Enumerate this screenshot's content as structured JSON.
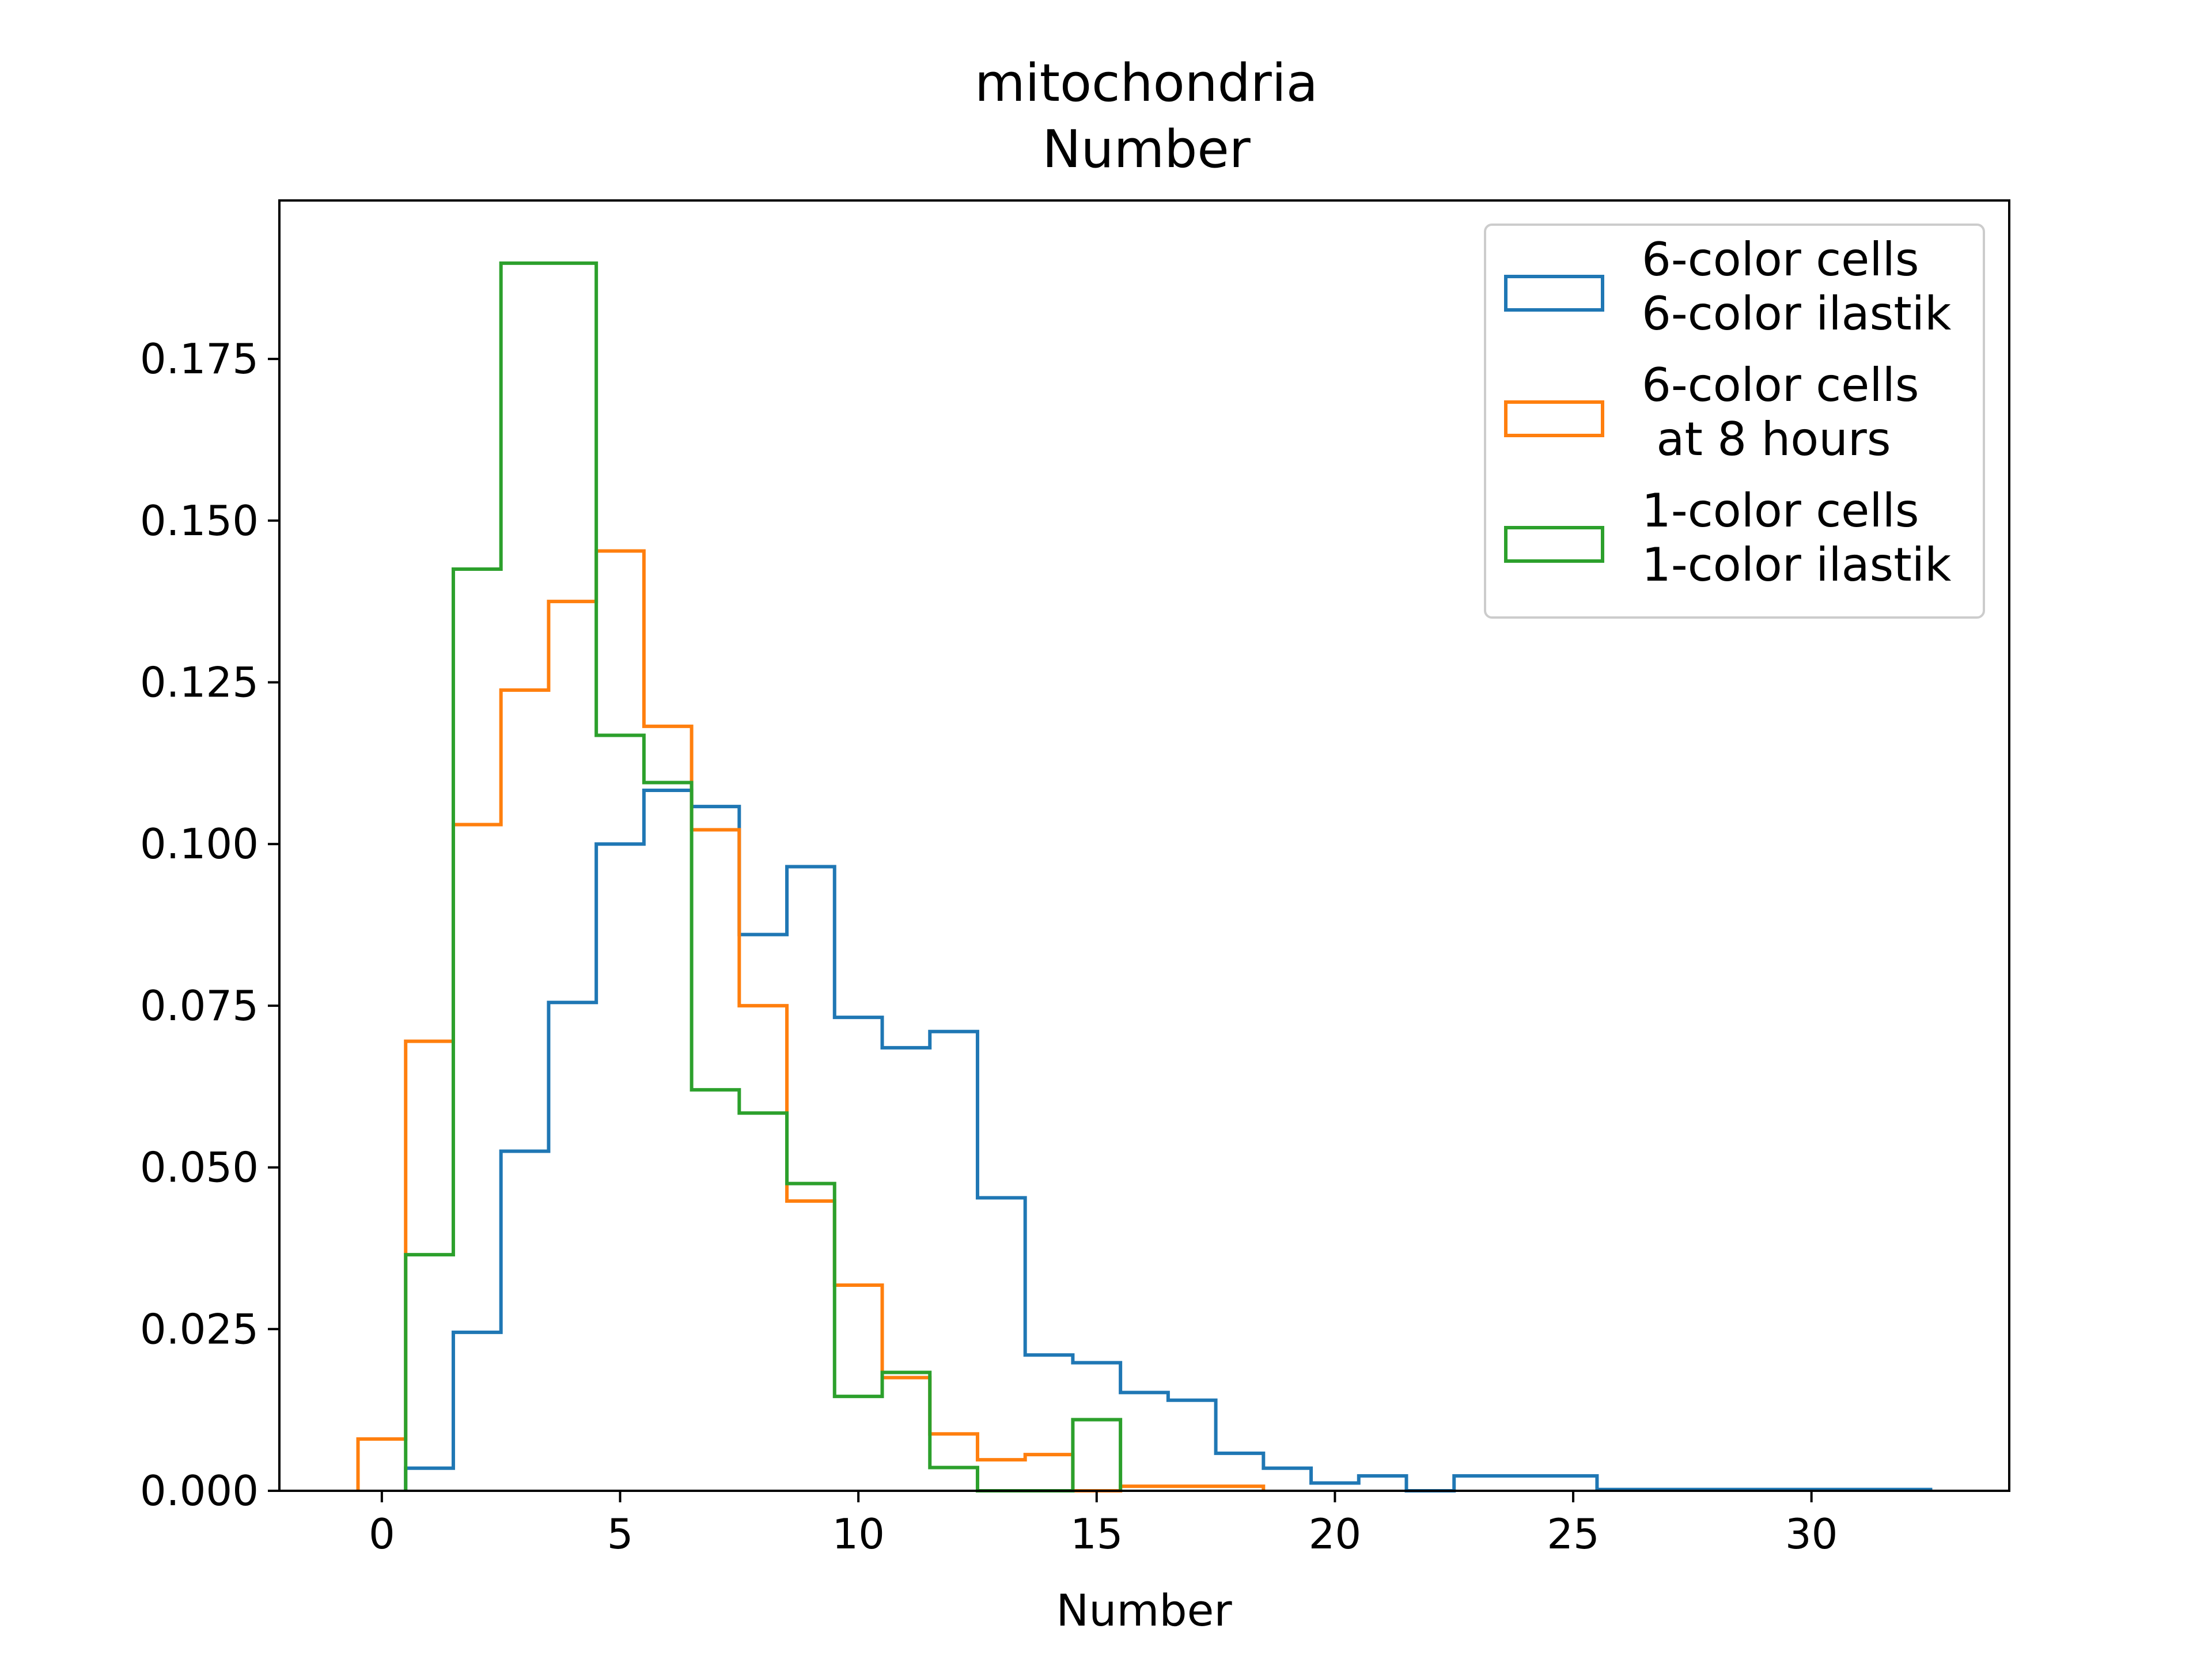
{
  "chart_data": {
    "type": "histogram",
    "title": "mitochondria",
    "subtitle": "Number",
    "xlabel": "Number",
    "ylabel": "",
    "xlim": [
      -2.15,
      34.15
    ],
    "ylim": [
      0,
      0.1995
    ],
    "x_ticks": [
      0,
      5,
      10,
      15,
      20,
      25,
      30
    ],
    "y_ticks": [
      0.0,
      0.025,
      0.05,
      0.075,
      0.1,
      0.125,
      0.15,
      0.175
    ],
    "y_tick_labels": [
      "0.000",
      "0.025",
      "0.050",
      "0.075",
      "0.100",
      "0.125",
      "0.150",
      "0.175"
    ],
    "legend_placement": "top-right",
    "series": [
      {
        "name_lines": [
          "6-color cells",
          "6-color ilastik"
        ],
        "color": "#1f77b4",
        "start": 0.5,
        "bin_width": 1,
        "values": [
          0.0035,
          0.0245,
          0.0525,
          0.0755,
          0.1,
          0.1083,
          0.1058,
          0.086,
          0.0965,
          0.0732,
          0.0685,
          0.071,
          0.0453,
          0.021,
          0.0198,
          0.0152,
          0.014,
          0.0058,
          0.0035,
          0.0012,
          0.0023,
          0.0,
          0.0023,
          0.0023,
          0.0023,
          0.0002,
          0.0002,
          0.0002,
          0.0002,
          0.0002,
          0.0002,
          0.0002
        ]
      },
      {
        "name_lines": [
          "6-color cells",
          " at 8 hours"
        ],
        "color": "#ff7f0e",
        "start": -0.5,
        "bin_width": 1,
        "values": [
          0.008,
          0.0695,
          0.103,
          0.1238,
          0.1375,
          0.1453,
          0.1182,
          0.1022,
          0.075,
          0.0448,
          0.0318,
          0.0175,
          0.0088,
          0.0048,
          0.0056,
          0.0,
          0.0007,
          0.0007,
          0.0007
        ]
      },
      {
        "name_lines": [
          "1-color cells",
          "1-color ilastik"
        ],
        "color": "#2ca02c",
        "start": 0.5,
        "bin_width": 1,
        "values": [
          0.0365,
          0.1425,
          0.1898,
          0.1898,
          0.1168,
          0.1095,
          0.062,
          0.0584,
          0.0475,
          0.0146,
          0.0183,
          0.0036,
          0.0,
          0.0,
          0.011
        ]
      }
    ]
  }
}
